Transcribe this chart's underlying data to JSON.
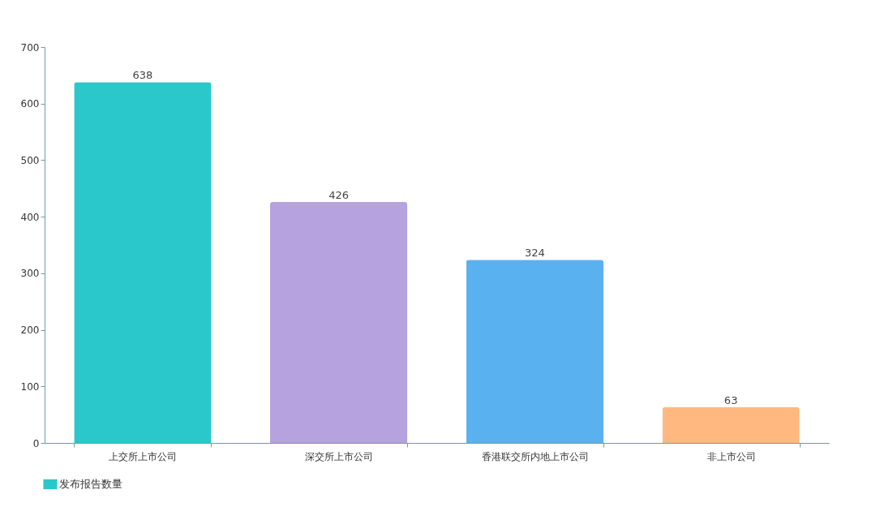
{
  "chart_data": {
    "type": "bar",
    "categories": [
      "上交所上市公司",
      "深交所上市公司",
      "香港联交所内地上市公司",
      "非上市公司"
    ],
    "series": [
      {
        "name": "发布报告数量",
        "color": "#2ac8cb",
        "colors": [
          "#2ac8cb",
          "#b6a2de",
          "#5ab1ef",
          "#ffb980"
        ],
        "values": [
          638,
          426,
          324,
          63
        ]
      }
    ],
    "ylim": [
      0,
      700
    ],
    "yticks": [
      0,
      100,
      200,
      300,
      400,
      500,
      600,
      700
    ],
    "grid": false,
    "legend": "bottom",
    "data_labels": true
  }
}
